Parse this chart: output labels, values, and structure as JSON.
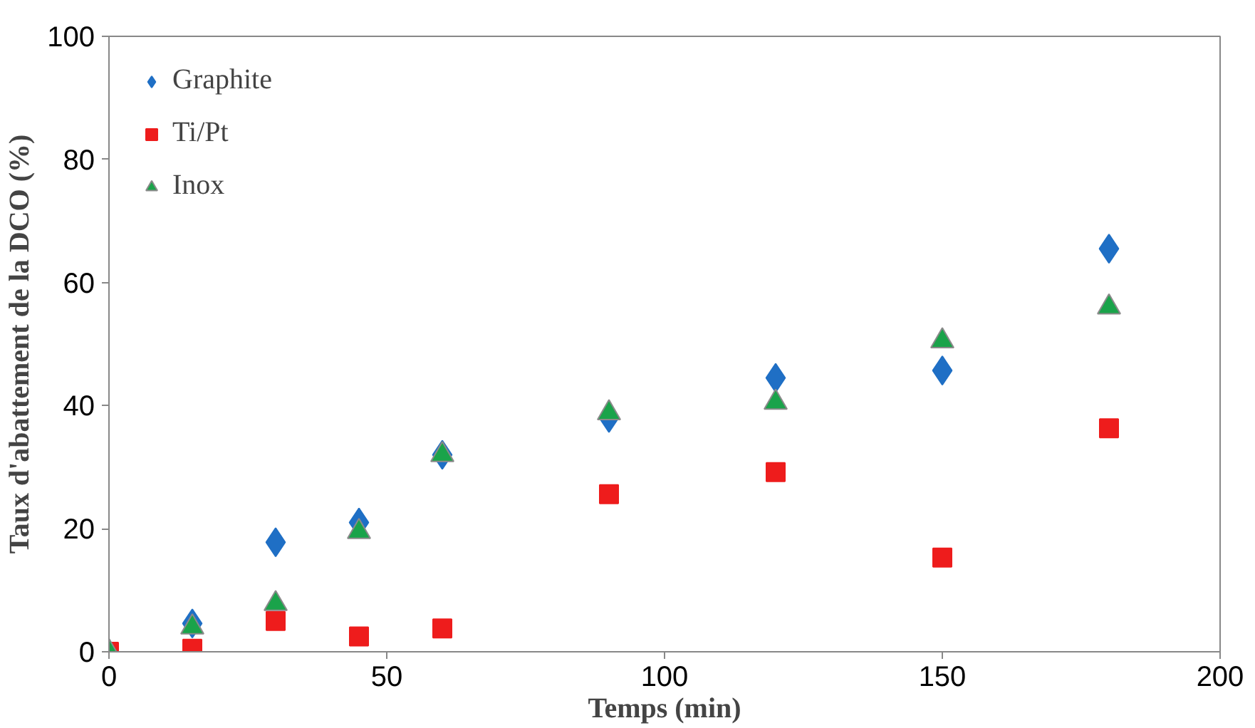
{
  "chart_data": {
    "type": "scatter",
    "xlabel": "Temps (min)",
    "ylabel": "Taux d'abattement de la DCO (%)",
    "x": [
      0,
      15,
      30,
      45,
      60,
      90,
      120,
      150,
      180
    ],
    "series": [
      {
        "name": "Graphite",
        "color": "#1f6fc5",
        "marker": "diamond",
        "values": [
          null,
          4.6,
          17.8,
          21,
          32,
          38,
          44.5,
          45.7,
          65.5
        ]
      },
      {
        "name": "Ti/Pt",
        "color": "#ee1c1c",
        "marker": "square",
        "values": [
          0,
          0.5,
          5,
          2.5,
          3.8,
          25.6,
          29.2,
          15.3,
          36.3
        ]
      },
      {
        "name": "Inox",
        "color": "#1aa34a",
        "marker": "triangle",
        "values": [
          0,
          4,
          7.8,
          19.5,
          32,
          38.8,
          40.5,
          50.5,
          56
        ]
      }
    ],
    "xlim": [
      0,
      200
    ],
    "xticks": [
      0,
      50,
      100,
      150,
      200
    ],
    "ylim": [
      0,
      100
    ],
    "yticks": [
      0,
      20,
      40,
      60,
      80,
      100
    ],
    "grid": false,
    "legend": "top left"
  }
}
